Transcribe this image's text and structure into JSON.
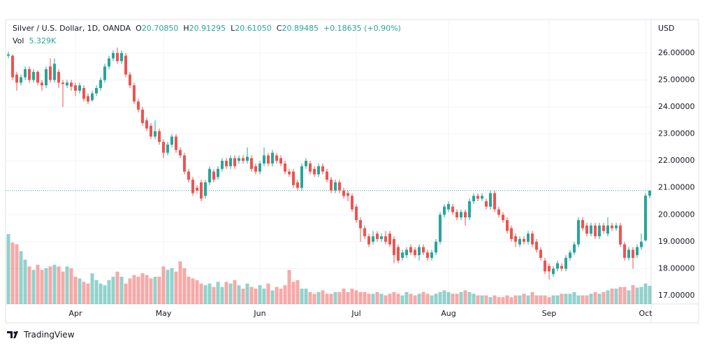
{
  "chart_data": {
    "type": "candlestick",
    "legend": {
      "symbol": "Silver / U.S. Dollar, 1D, OANDA",
      "open_label": "O",
      "open": "20.70850",
      "high_label": "H",
      "high": "20.91295",
      "low_label": "L",
      "low": "20.61050",
      "close_label": "C",
      "close": "20.89485",
      "change": "+0.18635 (+0.90%)"
    },
    "volume_label": "Vol",
    "volume_value_label": "5.329K",
    "currency": "USD",
    "brand": "TradingView",
    "up_color": "#26a69a",
    "down_color": "#ef5350",
    "ylim": [
      16.69,
      27.24
    ],
    "yticks": [
      {
        "value": 17,
        "label": "17.00000"
      },
      {
        "value": 18,
        "label": "18.00000"
      },
      {
        "value": 19,
        "label": "19.00000"
      },
      {
        "value": 20,
        "label": "20.00000"
      },
      {
        "value": 21,
        "label": "21.00000"
      },
      {
        "value": 22,
        "label": "22.00000"
      },
      {
        "value": 23,
        "label": "23.00000"
      },
      {
        "value": 24,
        "label": "24.00000"
      },
      {
        "value": 25,
        "label": "25.00000"
      },
      {
        "value": 26,
        "label": "26.00000"
      }
    ],
    "grid": true,
    "categories": [
      null,
      null,
      null,
      null,
      null,
      null,
      null,
      null,
      null,
      null,
      null,
      null,
      null,
      null,
      null,
      null,
      "Apr",
      null,
      null,
      null,
      null,
      null,
      null,
      null,
      null,
      null,
      null,
      null,
      null,
      null,
      null,
      null,
      null,
      null,
      null,
      null,
      null,
      "May",
      null,
      null,
      null,
      null,
      null,
      null,
      null,
      null,
      null,
      null,
      null,
      null,
      null,
      null,
      null,
      null,
      null,
      null,
      null,
      null,
      null,
      null,
      "Jun",
      null,
      null,
      null,
      null,
      null,
      null,
      null,
      null,
      null,
      null,
      null,
      null,
      null,
      null,
      null,
      null,
      null,
      null,
      null,
      null,
      null,
      null,
      "Jul",
      null,
      null,
      null,
      null,
      null,
      null,
      null,
      null,
      null,
      null,
      null,
      null,
      null,
      null,
      null,
      null,
      null,
      null,
      null,
      null,
      null,
      "Aug",
      null,
      null,
      null,
      null,
      null,
      null,
      null,
      null,
      null,
      null,
      null,
      null,
      null,
      null,
      null,
      null,
      null,
      null,
      null,
      null,
      null,
      null,
      null,
      "Sep",
      null,
      null,
      null,
      null,
      null,
      null,
      null,
      null,
      null,
      null,
      null,
      null,
      null,
      null,
      null,
      null,
      null,
      null,
      null,
      null,
      null,
      null,
      "Oct",
      null
    ],
    "open": [
      25.9,
      25.9,
      25.2,
      24.9,
      25.1,
      25.4,
      25.0,
      25.3,
      24.9,
      24.8,
      25.5,
      25.0,
      25.3,
      24.9,
      24.8,
      24.9,
      24.8,
      24.6,
      24.7,
      24.4,
      24.25,
      24.5,
      24.7,
      25.0,
      25.5,
      25.8,
      26.0,
      25.7,
      25.9,
      25.2,
      24.8,
      24.2,
      23.9,
      23.5,
      23.3,
      22.9,
      23.1,
      22.7,
      22.3,
      22.6,
      22.9,
      22.4,
      22.2,
      21.6,
      21.3,
      21.0,
      21.2,
      20.7,
      21.2,
      21.6,
      21.4,
      21.7,
      22.0,
      21.8,
      22.1,
      22.0,
      22.1,
      22.0,
      22.1,
      21.8,
      21.6,
      21.9,
      22.2,
      21.9,
      22.2,
      22.1,
      21.9,
      21.6,
      21.6,
      21.2,
      21.0,
      21.8,
      21.9,
      21.7,
      21.5,
      21.8,
      21.6,
      21.3,
      20.9,
      21.2,
      20.9,
      20.8,
      20.7,
      20.3,
      19.8,
      19.5,
      19.2,
      19.0,
      19.3,
      19.1,
      19.2,
      19.3,
      19.1,
      18.8,
      18.4,
      18.5,
      18.8,
      18.7,
      18.5,
      18.8,
      18.6,
      18.4,
      18.6,
      19.0,
      20.0,
      20.2,
      20.3,
      20.1,
      19.9,
      20.1,
      19.9,
      20.5,
      20.7,
      20.6,
      20.5,
      20.3,
      20.8,
      20.2,
      20.0,
      19.8,
      19.5,
      19.2,
      18.9,
      19.1,
      19.0,
      19.3,
      19.0,
      18.7,
      18.3,
      18.1,
      17.8,
      18.0,
      18.1,
      18.0,
      18.4,
      18.6,
      18.9,
      19.8,
      19.6,
      19.3,
      19.6,
      19.2,
      19.6,
      19.3,
      19.6,
      19.5,
      19.6,
      18.9,
      18.4,
      18.7,
      18.5,
      18.8,
      19.05,
      20.7085
    ],
    "high": [
      26.05,
      25.95,
      25.3,
      25.2,
      25.5,
      25.5,
      25.4,
      25.35,
      25.0,
      25.5,
      25.8,
      25.8,
      25.4,
      25.0,
      25.0,
      25.0,
      24.9,
      24.9,
      24.8,
      24.5,
      24.6,
      24.8,
      25.1,
      25.6,
      25.9,
      26.1,
      26.2,
      26.1,
      26.0,
      25.3,
      24.9,
      24.3,
      24.0,
      23.6,
      23.4,
      23.5,
      23.2,
      22.8,
      22.7,
      23.0,
      23.0,
      22.5,
      22.3,
      21.7,
      21.4,
      21.1,
      21.3,
      21.3,
      21.8,
      21.7,
      21.8,
      22.1,
      22.1,
      22.2,
      22.2,
      22.2,
      22.2,
      22.5,
      22.2,
      21.9,
      22.0,
      22.5,
      22.3,
      22.4,
      22.3,
      22.2,
      22.0,
      21.7,
      21.7,
      21.3,
      21.9,
      22.1,
      22.0,
      21.8,
      21.9,
      21.9,
      21.7,
      21.4,
      21.3,
      21.3,
      21.0,
      20.9,
      20.8,
      20.4,
      19.9,
      19.6,
      19.3,
      19.4,
      19.4,
      19.3,
      19.4,
      19.4,
      19.2,
      18.9,
      18.7,
      18.8,
      18.9,
      18.8,
      18.9,
      18.9,
      18.7,
      18.7,
      19.1,
      20.1,
      20.4,
      20.5,
      20.4,
      20.2,
      20.2,
      20.2,
      20.6,
      20.8,
      20.8,
      20.8,
      20.6,
      20.9,
      20.9,
      20.3,
      20.1,
      19.9,
      19.6,
      19.3,
      19.2,
      19.2,
      19.4,
      19.4,
      19.1,
      18.8,
      18.4,
      18.2,
      18.1,
      18.3,
      18.2,
      18.5,
      18.7,
      19.0,
      19.9,
      19.9,
      19.7,
      19.7,
      19.7,
      19.7,
      19.7,
      19.9,
      19.7,
      19.7,
      19.7,
      19.0,
      18.8,
      18.8,
      18.9,
      19.3,
      20.8,
      20.91295
    ],
    "low": [
      25.8,
      25.0,
      24.6,
      24.8,
      25.0,
      24.9,
      24.9,
      24.8,
      24.6,
      24.7,
      24.9,
      24.9,
      24.7,
      24.0,
      24.7,
      24.6,
      24.4,
      24.5,
      24.2,
      24.1,
      24.2,
      24.4,
      24.6,
      24.9,
      25.4,
      25.7,
      25.6,
      25.6,
      25.1,
      24.7,
      24.1,
      23.8,
      23.3,
      23.1,
      22.8,
      22.8,
      22.6,
      22.1,
      22.2,
      22.5,
      22.3,
      22.1,
      21.5,
      21.2,
      20.7,
      20.8,
      20.5,
      20.6,
      21.1,
      21.2,
      21.3,
      21.6,
      21.7,
      21.7,
      21.7,
      21.9,
      21.9,
      21.9,
      21.6,
      21.5,
      21.5,
      21.8,
      21.8,
      21.8,
      21.9,
      21.8,
      21.5,
      21.4,
      21.0,
      20.9,
      20.9,
      21.7,
      21.5,
      21.4,
      21.4,
      21.5,
      21.2,
      20.8,
      20.8,
      20.8,
      20.6,
      20.5,
      20.1,
      19.7,
      19.0,
      19.1,
      18.8,
      18.9,
      19.0,
      19.0,
      18.9,
      18.8,
      18.2,
      18.2,
      18.3,
      18.4,
      18.5,
      18.4,
      18.3,
      18.5,
      18.3,
      18.3,
      18.5,
      18.9,
      19.9,
      20.1,
      20.0,
      19.8,
      19.8,
      19.6,
      19.8,
      20.4,
      20.5,
      20.5,
      20.2,
      20.2,
      20.1,
      19.9,
      19.7,
      19.3,
      19.0,
      18.8,
      18.8,
      18.9,
      18.9,
      18.8,
      18.6,
      18.3,
      17.8,
      17.6,
      17.7,
      17.9,
      17.9,
      17.9,
      18.3,
      18.5,
      18.8,
      19.4,
      19.2,
      19.2,
      19.1,
      19.1,
      19.3,
      19.2,
      19.4,
      19.4,
      18.8,
      18.3,
      18.3,
      18.0,
      18.4,
      18.7,
      19.0,
      20.6105
    ],
    "close": [
      25.95,
      25.1,
      24.9,
      25.1,
      25.4,
      25.0,
      25.3,
      24.9,
      24.8,
      25.4,
      25.0,
      25.6,
      24.9,
      24.85,
      24.9,
      24.75,
      24.6,
      24.8,
      24.3,
      24.2,
      24.5,
      24.7,
      25.0,
      25.5,
      25.8,
      26.0,
      25.7,
      26.0,
      25.2,
      24.8,
      24.2,
      23.9,
      23.4,
      23.2,
      22.9,
      23.1,
      22.7,
      22.3,
      22.6,
      22.9,
      22.4,
      22.2,
      21.6,
      21.3,
      20.8,
      20.9,
      20.6,
      21.2,
      21.7,
      21.3,
      21.7,
      22.0,
      21.8,
      22.1,
      21.8,
      22.1,
      22.0,
      22.15,
      21.7,
      21.6,
      21.9,
      22.2,
      21.9,
      22.3,
      22.0,
      21.9,
      21.6,
      21.5,
      21.1,
      21.0,
      21.8,
      22.0,
      21.6,
      21.5,
      21.8,
      21.6,
      21.3,
      20.9,
      21.2,
      20.9,
      20.7,
      20.7,
      20.2,
      19.8,
      19.5,
      19.2,
      18.9,
      19.2,
      19.1,
      19.2,
      19.0,
      18.9,
      18.5,
      18.3,
      18.6,
      18.7,
      18.6,
      18.5,
      18.8,
      18.6,
      18.4,
      18.6,
      19.0,
      20.0,
      20.3,
      20.4,
      20.1,
      19.9,
      20.1,
      19.9,
      20.5,
      20.7,
      20.6,
      20.7,
      20.3,
      20.8,
      20.2,
      20.0,
      19.8,
      19.4,
      19.1,
      19.0,
      19.1,
      19.0,
      19.3,
      18.9,
      18.7,
      18.4,
      17.9,
      17.9,
      18.0,
      18.2,
      18.0,
      18.4,
      18.6,
      18.9,
      19.8,
      19.5,
      19.3,
      19.6,
      19.2,
      19.6,
      19.4,
      19.6,
      19.5,
      19.6,
      18.9,
      18.4,
      18.7,
      18.4,
      18.8,
      19.0,
      20.7085,
      20.89485
    ],
    "volume": [
      20500,
      18000,
      17500,
      15500,
      13000,
      11000,
      10000,
      11500,
      10000,
      10500,
      11000,
      11500,
      11000,
      9500,
      11000,
      10500,
      8000,
      7500,
      6500,
      6000,
      9000,
      7000,
      6000,
      5500,
      7000,
      8000,
      9500,
      8000,
      6000,
      7500,
      8500,
      8000,
      9000,
      8500,
      7500,
      8000,
      8000,
      11000,
      10000,
      10500,
      9500,
      12500,
      10500,
      8000,
      7500,
      7000,
      6000,
      5500,
      6000,
      5000,
      6500,
      5000,
      6500,
      6000,
      7000,
      5500,
      4500,
      6000,
      5000,
      4500,
      5500,
      4500,
      6000,
      4000,
      5000,
      4500,
      5500,
      10000,
      6500,
      7000,
      4500,
      4500,
      3500,
      3000,
      3500,
      4000,
      3000,
      3000,
      3500,
      3500,
      4500,
      3500,
      4500,
      4000,
      3500,
      3500,
      3000,
      3000,
      3500,
      3000,
      2500,
      3000,
      3500,
      3000,
      2500,
      3500,
      3000,
      2500,
      3000,
      3500,
      3000,
      2500,
      3000,
      3500,
      4000,
      3500,
      3000,
      3000,
      3500,
      4000,
      3500,
      3000,
      2500,
      2500,
      2500,
      2000,
      2500,
      2000,
      2000,
      2500,
      2000,
      2500,
      2500,
      3000,
      2500,
      3500,
      2500,
      2500,
      2500,
      2000,
      2500,
      2500,
      3000,
      3000,
      3000,
      3500,
      2500,
      2500,
      2500,
      3000,
      3500,
      3000,
      3500,
      4000,
      4500,
      4500,
      5000,
      5000,
      4000,
      5500,
      4800,
      5000,
      6000,
      5329
    ]
  }
}
